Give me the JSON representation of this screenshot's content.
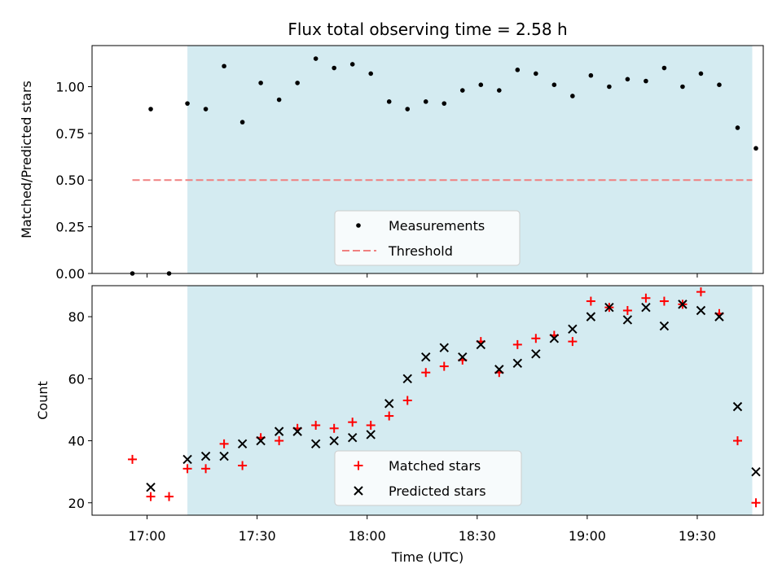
{
  "chart_data": {
    "title": "Flux total observing time = 2.58 h",
    "x_axis": {
      "label": "Time (UTC)",
      "range_minutes_since_1700": [
        -15,
        168
      ],
      "ticks": [
        {
          "value": 0,
          "label": "17:00"
        },
        {
          "value": 30,
          "label": "17:30"
        },
        {
          "value": 60,
          "label": "18:00"
        },
        {
          "value": 90,
          "label": "18:30"
        },
        {
          "value": 120,
          "label": "19:00"
        },
        {
          "value": 150,
          "label": "19:30"
        }
      ]
    },
    "shaded_interval_minutes": [
      11,
      165
    ],
    "shade_color": "#d4ebf1",
    "panels": [
      {
        "type": "scatter",
        "ylabel": "Matched/Predicted stars",
        "ylim": [
          0,
          1.22
        ],
        "yticks": [
          {
            "value": 0,
            "label": "0.00"
          },
          {
            "value": 0.25,
            "label": "0.25"
          },
          {
            "value": 0.5,
            "label": "0.50"
          },
          {
            "value": 0.75,
            "label": "0.75"
          },
          {
            "value": 1.0,
            "label": "1.00"
          }
        ],
        "threshold": {
          "name": "Threshold",
          "value": 0.5,
          "x_range": [
            -4,
            165
          ],
          "color": "#f08080"
        },
        "series": [
          {
            "name": "Measurements",
            "marker": "dot",
            "color": "#000000",
            "points": [
              [
                -4,
                0.0
              ],
              [
                1,
                0.88
              ],
              [
                6,
                0.0
              ],
              [
                11,
                0.91
              ],
              [
                16,
                0.88
              ],
              [
                21,
                1.11
              ],
              [
                26,
                0.81
              ],
              [
                31,
                1.02
              ],
              [
                36,
                0.93
              ],
              [
                41,
                1.02
              ],
              [
                46,
                1.15
              ],
              [
                51,
                1.1
              ],
              [
                56,
                1.12
              ],
              [
                61,
                1.07
              ],
              [
                66,
                0.92
              ],
              [
                71,
                0.88
              ],
              [
                76,
                0.92
              ],
              [
                81,
                0.91
              ],
              [
                86,
                0.98
              ],
              [
                91,
                1.01
              ],
              [
                96,
                0.98
              ],
              [
                101,
                1.09
              ],
              [
                106,
                1.07
              ],
              [
                111,
                1.01
              ],
              [
                116,
                0.95
              ],
              [
                121,
                1.06
              ],
              [
                126,
                1.0
              ],
              [
                131,
                1.04
              ],
              [
                136,
                1.03
              ],
              [
                141,
                1.1
              ],
              [
                146,
                1.0
              ],
              [
                151,
                1.07
              ],
              [
                156,
                1.01
              ],
              [
                161,
                0.78
              ],
              [
                166,
                0.67
              ]
            ]
          }
        ],
        "legend": {
          "placement": "lower-center",
          "entries": [
            "Measurements",
            "Threshold"
          ]
        }
      },
      {
        "type": "scatter",
        "ylabel": "Count",
        "ylim": [
          16,
          90
        ],
        "yticks": [
          {
            "value": 20,
            "label": "20"
          },
          {
            "value": 40,
            "label": "40"
          },
          {
            "value": 60,
            "label": "60"
          },
          {
            "value": 80,
            "label": "80"
          }
        ],
        "series": [
          {
            "name": "Matched stars",
            "marker": "plus",
            "color": "#ff0000",
            "points": [
              [
                -4,
                34
              ],
              [
                1,
                22
              ],
              [
                6,
                22
              ],
              [
                11,
                31
              ],
              [
                16,
                31
              ],
              [
                21,
                39
              ],
              [
                26,
                32
              ],
              [
                31,
                41
              ],
              [
                36,
                40
              ],
              [
                41,
                44
              ],
              [
                46,
                45
              ],
              [
                51,
                44
              ],
              [
                56,
                46
              ],
              [
                61,
                45
              ],
              [
                66,
                48
              ],
              [
                71,
                53
              ],
              [
                76,
                62
              ],
              [
                81,
                64
              ],
              [
                86,
                66
              ],
              [
                91,
                72
              ],
              [
                96,
                62
              ],
              [
                101,
                71
              ],
              [
                106,
                73
              ],
              [
                111,
                74
              ],
              [
                116,
                72
              ],
              [
                121,
                85
              ],
              [
                126,
                83
              ],
              [
                131,
                82
              ],
              [
                136,
                86
              ],
              [
                141,
                85
              ],
              [
                146,
                84
              ],
              [
                151,
                88
              ],
              [
                156,
                81
              ],
              [
                161,
                40
              ],
              [
                166,
                20
              ]
            ]
          },
          {
            "name": "Predicted stars",
            "marker": "x",
            "color": "#000000",
            "points": [
              [
                1,
                25
              ],
              [
                11,
                34
              ],
              [
                16,
                35
              ],
              [
                21,
                35
              ],
              [
                26,
                39
              ],
              [
                31,
                40
              ],
              [
                36,
                43
              ],
              [
                41,
                43
              ],
              [
                46,
                39
              ],
              [
                51,
                40
              ],
              [
                56,
                41
              ],
              [
                61,
                42
              ],
              [
                66,
                52
              ],
              [
                71,
                60
              ],
              [
                76,
                67
              ],
              [
                81,
                70
              ],
              [
                86,
                67
              ],
              [
                91,
                71
              ],
              [
                96,
                63
              ],
              [
                101,
                65
              ],
              [
                106,
                68
              ],
              [
                111,
                73
              ],
              [
                116,
                76
              ],
              [
                121,
                80
              ],
              [
                126,
                83
              ],
              [
                131,
                79
              ],
              [
                136,
                83
              ],
              [
                141,
                77
              ],
              [
                146,
                84
              ],
              [
                151,
                82
              ],
              [
                156,
                80
              ],
              [
                161,
                51
              ],
              [
                166,
                30
              ]
            ]
          }
        ],
        "legend": {
          "placement": "lower-center",
          "entries": [
            "Matched stars",
            "Predicted stars"
          ]
        }
      }
    ]
  }
}
